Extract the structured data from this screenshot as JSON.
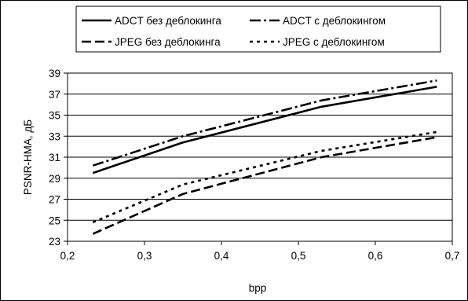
{
  "chart_data": {
    "type": "line",
    "xlabel": "bpp",
    "ylabel": "PSNR-HMA, дБ",
    "xlim": [
      0.2,
      0.7
    ],
    "ylim": [
      23,
      39
    ],
    "xticks": [
      "0,2",
      "0,3",
      "0,4",
      "0,5",
      "0,6",
      "0,7"
    ],
    "yticks": [
      "23",
      "25",
      "27",
      "29",
      "31",
      "33",
      "35",
      "37",
      "39"
    ],
    "grid": "horizontal",
    "legend_position": "top",
    "series": [
      {
        "name": "ADCT без деблокинга",
        "style": "solid",
        "x": [
          0.233,
          0.35,
          0.53,
          0.68
        ],
        "y": [
          29.5,
          32.4,
          35.8,
          37.7
        ]
      },
      {
        "name": "ADCT с деблокингом",
        "style": "dashdot",
        "x": [
          0.233,
          0.35,
          0.53,
          0.68
        ],
        "y": [
          30.2,
          33.0,
          36.4,
          38.3
        ]
      },
      {
        "name": "JPEG без деблокинга",
        "style": "dash",
        "x": [
          0.233,
          0.35,
          0.53,
          0.68
        ],
        "y": [
          23.7,
          27.5,
          31.0,
          32.9
        ]
      },
      {
        "name": "JPEG с деблокингом",
        "style": "dot",
        "x": [
          0.233,
          0.35,
          0.53,
          0.68
        ],
        "y": [
          24.8,
          28.4,
          31.6,
          33.4
        ]
      }
    ]
  }
}
